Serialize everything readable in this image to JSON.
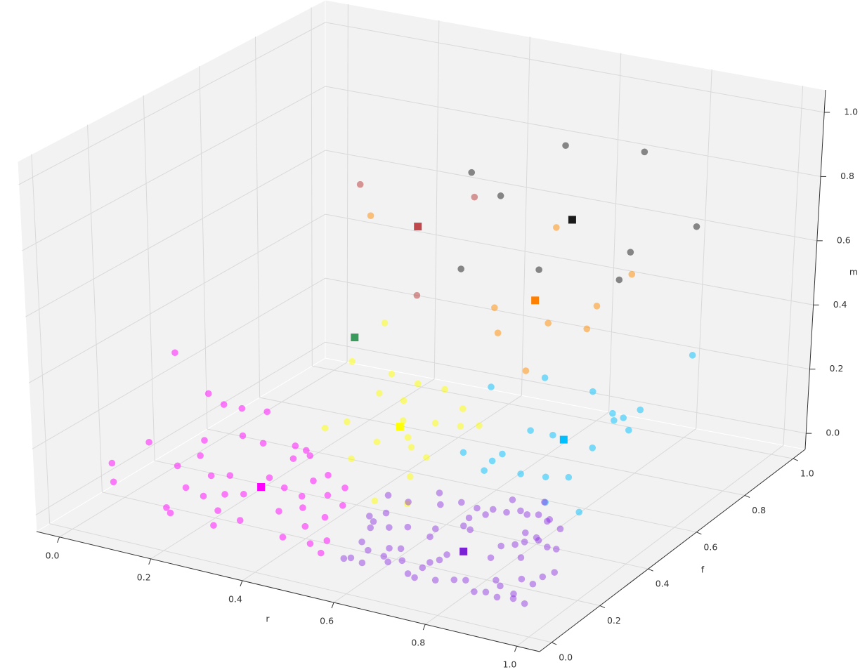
{
  "chart_data": {
    "type": "scatter3d",
    "xlabel": "r",
    "ylabel": "f",
    "zlabel": "m",
    "xlim": [
      -0.05,
      1.05
    ],
    "ylim": [
      -0.05,
      1.05
    ],
    "zlim": [
      -0.05,
      1.07
    ],
    "xticks": [
      {
        "value": 0,
        "label": "0.0"
      },
      0.2,
      0.4,
      0.6,
      0.8,
      {
        "value": 1,
        "label": "1.0"
      }
    ],
    "yticks": [
      {
        "value": 0,
        "label": "0.0"
      },
      0.2,
      0.4,
      0.6,
      0.8,
      {
        "value": 1,
        "label": "1.0"
      }
    ],
    "zticks": [
      {
        "value": 0,
        "label": "0.0"
      },
      0.2,
      0.4,
      0.6,
      0.8,
      {
        "value": 1,
        "label": "1.0"
      }
    ],
    "grid": true,
    "series": [
      {
        "color": "#000000",
        "alpha": 0.45,
        "marker": "o",
        "x": [
          0.61,
          0.76,
          0.44,
          0.55,
          0.88,
          0.83,
          0.84,
          0.59,
          0.72
        ],
        "y": [
          0.83,
          0.87,
          0.77,
          0.69,
          0.87,
          0.7,
          0.64,
          0.47,
          0.54
        ],
        "z": [
          0.9,
          0.9,
          0.8,
          0.8,
          0.7,
          0.7,
          0.65,
          0.7,
          0.7
        ]
      },
      {
        "color": "#b22222",
        "alpha": 0.45,
        "marker": "o",
        "x": [
          0.29,
          0.51,
          0.42
        ],
        "y": [
          0.61,
          0.66,
          0.6
        ],
        "z": [
          0.8,
          0.8,
          0.5
        ]
      },
      {
        "color": "#ff8c00",
        "alpha": 0.5,
        "marker": "o",
        "x": [
          0.54,
          0.71,
          0.67,
          0.75,
          0.61,
          0.75,
          0.73,
          0.56,
          0.26
        ],
        "y": [
          0.69,
          0.79,
          0.67,
          0.68,
          0.58,
          0.44,
          0.89,
          0.89,
          0.7
        ],
        "z": [
          0.45,
          0.45,
          0.45,
          0.45,
          0.45,
          0.45,
          0.5,
          0.6,
          0.65
        ]
      },
      {
        "color": "#ffff00",
        "alpha": 0.5,
        "marker": "o",
        "x": [
          0.18,
          0.23,
          0.33,
          0.4,
          0.36,
          0.46,
          0.42,
          0.54,
          0.53,
          0.58,
          0.61,
          0.38,
          0.36,
          0.47,
          0.48,
          0.52,
          0.55,
          0.6,
          0.48,
          0.62,
          0.62,
          0.68
        ],
        "y": [
          0.89,
          0.68,
          0.66,
          0.64,
          0.56,
          0.64,
          0.55,
          0.57,
          0.48,
          0.49,
          0.51,
          0.4,
          0.35,
          0.46,
          0.34,
          0.39,
          0.35,
          0.32,
          0.24,
          0.22,
          0.08,
          0.1
        ],
        "z": [
          0.2,
          0.2,
          0.2,
          0.2,
          0.2,
          0.2,
          0.2,
          0.2,
          0.2,
          0.2,
          0.2,
          0.2,
          0.2,
          0.2,
          0.2,
          0.2,
          0.2,
          0.2,
          0.2,
          0.2,
          0.2,
          0.2
        ]
      },
      {
        "color": "#00bfff",
        "alpha": 0.5,
        "marker": "o",
        "x": [
          0.45,
          0.52,
          0.64,
          0.73,
          0.75,
          0.76,
          0.77,
          0.8,
          0.68,
          0.63,
          0.78,
          0.92,
          0.57,
          0.64,
          0.64,
          0.65,
          0.72,
          0.77,
          0.81,
          0.83,
          0.91
        ],
        "y": [
          0.84,
          0.93,
          0.91,
          0.83,
          0.8,
          0.82,
          0.87,
          0.77,
          0.68,
          0.68,
          0.66,
          0.8,
          0.52,
          0.55,
          0.51,
          0.46,
          0.48,
          0.49,
          0.51,
          0.38,
          0.37
        ],
        "z": [
          0.1,
          0.1,
          0.1,
          0.1,
          0.1,
          0.1,
          0.1,
          0.1,
          0.1,
          0.1,
          0.1,
          0.35,
          0.1,
          0.1,
          0.1,
          0.1,
          0.1,
          0.1,
          0.1,
          0.1,
          0.1
        ]
      },
      {
        "color": "#ff00ff",
        "alpha": 0.5,
        "marker": "o",
        "x": [
          0.05,
          0.08,
          0.09,
          0.13,
          0.18,
          0.07,
          0.04,
          0.03,
          0.09,
          0.11,
          0.16,
          0.17,
          0.1,
          0.23,
          0.26,
          0.28,
          0.26,
          0.27,
          0.2,
          0.17,
          0.16,
          0.24,
          0.27,
          0.32,
          0.35,
          0.36,
          0.37,
          0.41,
          0.42,
          0.21,
          0.18,
          0.2,
          0.27,
          0.33,
          0.3,
          0.37,
          0.4,
          0.45,
          0.46,
          0.44,
          0.5,
          0.52,
          0.54,
          0.46
        ],
        "y": [
          0.32,
          0.39,
          0.43,
          0.43,
          0.44,
          0.18,
          0.09,
          0.11,
          0.25,
          0.32,
          0.38,
          0.44,
          0.32,
          0.46,
          0.45,
          0.43,
          0.4,
          0.29,
          0.26,
          0.24,
          0.16,
          0.17,
          0.19,
          0.26,
          0.32,
          0.36,
          0.24,
          0.27,
          0.32,
          0.14,
          0.05,
          0.03,
          0.09,
          0.07,
          0.02,
          0.15,
          0.19,
          0.11,
          0.17,
          0.04,
          0.04,
          0.07,
          0.01,
          0.24
        ],
        "z": [
          0.35,
          0.2,
          0.15,
          0.15,
          0.15,
          0.15,
          0.12,
          0.05,
          0.05,
          0.1,
          0.1,
          0.05,
          0.05,
          0.05,
          0.05,
          0.05,
          0.05,
          0.05,
          0.05,
          0.05,
          0.05,
          0.05,
          0.05,
          0.05,
          0.05,
          0.05,
          0.05,
          0.05,
          0.05,
          0.05,
          0.05,
          0.05,
          0.05,
          0.05,
          0.05,
          0.05,
          0.05,
          0.05,
          0.05,
          0.05,
          0.05,
          0.05,
          0.05,
          0.05
        ]
      },
      {
        "color": "#8a2be2",
        "alpha": 0.45,
        "marker": "o",
        "x": [
          0.51,
          0.53,
          0.55,
          0.55,
          0.62,
          0.56,
          0.59,
          0.62,
          0.65,
          0.69,
          0.72,
          0.72,
          0.75,
          0.73,
          0.77,
          0.79,
          0.81,
          0.84,
          0.79,
          0.88,
          0.71,
          0.7,
          0.73,
          0.67,
          0.68,
          0.59,
          0.56,
          0.58,
          0.59,
          0.6,
          0.61,
          0.65,
          0.64,
          0.66,
          0.69,
          0.74,
          0.74,
          0.75,
          0.75,
          0.82,
          0.84,
          0.79,
          0.75,
          0.73,
          0.67,
          0.63,
          0.83,
          0.82,
          0.84,
          0.88,
          0.85,
          0.87,
          0.9,
          0.92,
          0.97,
          0.96,
          0.96,
          0.93,
          0.99,
          0.95,
          0.91,
          0.89,
          0.9,
          0.93,
          0.88,
          0.96,
          0.84,
          0.83,
          0.86
        ],
        "y": [
          0.33,
          0.22,
          0.2,
          0.25,
          0.21,
          0.32,
          0.39,
          0.34,
          0.37,
          0.36,
          0.34,
          0.37,
          0.37,
          0.43,
          0.39,
          0.38,
          0.39,
          0.38,
          0.45,
          0.35,
          0.27,
          0.31,
          0.26,
          0.23,
          0.19,
          0.19,
          0.17,
          0.1,
          0.01,
          0.02,
          0.07,
          0.06,
          0.1,
          0.11,
          0.06,
          0.05,
          0.08,
          0.1,
          0.13,
          0.03,
          0.04,
          0.01,
          0.0,
          0.01,
          0.04,
          0.01,
          0.16,
          0.22,
          0.24,
          0.19,
          0.26,
          0.28,
          0.26,
          0.26,
          0.16,
          0.13,
          0.09,
          0.1,
          0.0,
          0.03,
          0.05,
          0.07,
          0.01,
          0.0,
          0.0,
          0.01,
          0.37,
          0.3,
          0.29
        ],
        "z": [
          0.05,
          0.05,
          0.05,
          0.05,
          0.05,
          0.05,
          0.05,
          0.05,
          0.05,
          0.05,
          0.05,
          0.05,
          0.05,
          0.05,
          0.05,
          0.05,
          0.05,
          0.05,
          0.05,
          0.05,
          0.05,
          0.05,
          0.05,
          0.05,
          0.05,
          0.05,
          0.05,
          0.05,
          0.05,
          0.05,
          0.05,
          0.05,
          0.05,
          0.05,
          0.05,
          0.05,
          0.05,
          0.05,
          0.05,
          0.05,
          0.05,
          0.05,
          0.05,
          0.05,
          0.05,
          0.05,
          0.05,
          0.05,
          0.05,
          0.05,
          0.05,
          0.05,
          0.05,
          0.05,
          0.05,
          0.05,
          0.05,
          0.05,
          0.05,
          0.05,
          0.05,
          0.05,
          0.05,
          0.05,
          0.05,
          0.05,
          0.05,
          0.05,
          0.05
        ]
      },
      {
        "marker": "s",
        "alpha": 1,
        "colors": [
          "#1a1a1a",
          "#c0474b",
          "#ff8000",
          "#3a9a5c",
          "#ffff00",
          "#00bfff",
          "#ff00ff",
          "#7b22d6"
        ],
        "x": [
          0.69,
          0.41,
          0.59,
          0.3,
          0.48,
          0.71,
          0.28,
          0.77
        ],
        "y": [
          0.72,
          0.62,
          0.76,
          0.57,
          0.43,
          0.67,
          0.24,
          0.16
        ],
        "z": [
          0.75,
          0.7,
          0.45,
          0.35,
          0.2,
          0.1,
          0.05,
          0.05
        ]
      }
    ]
  }
}
